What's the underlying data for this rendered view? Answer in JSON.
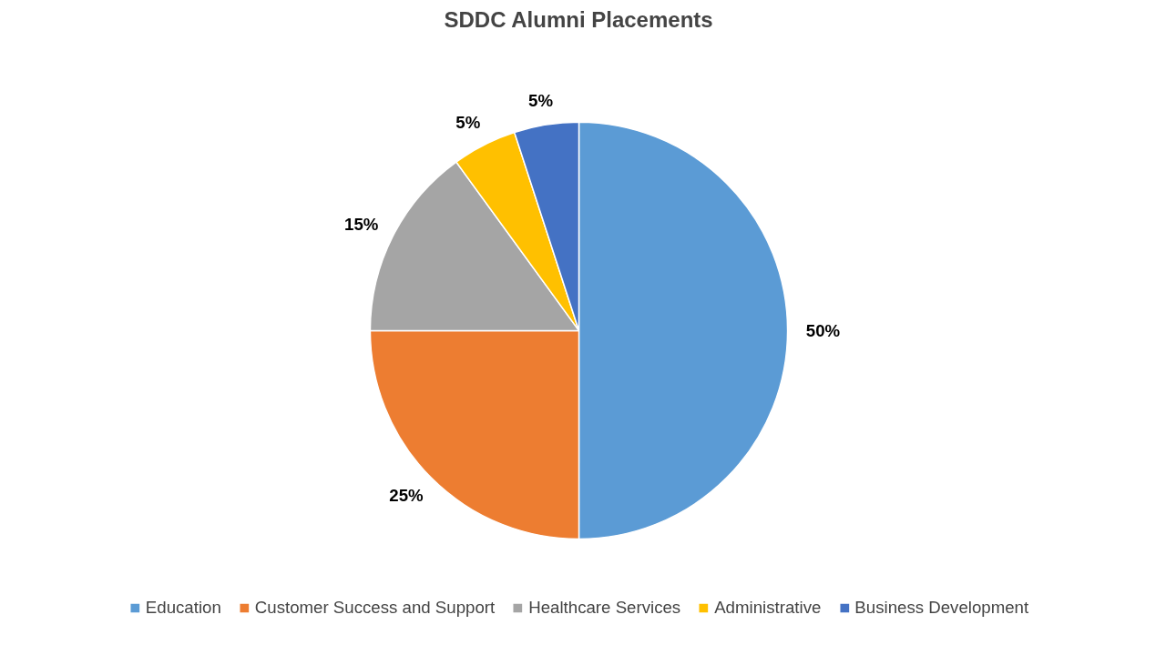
{
  "chart_data": {
    "type": "pie",
    "title": "SDDC Alumni Placements",
    "categories": [
      "Education",
      "Customer Success and Support",
      "Healthcare Services",
      "Administrative",
      "Business Development"
    ],
    "values": [
      50,
      25,
      15,
      5,
      5
    ],
    "colors": [
      "#5b9bd5",
      "#ed7d31",
      "#a5a5a5",
      "#ffc000",
      "#4472c4"
    ],
    "value_labels": [
      "50%",
      "25%",
      "15%",
      "5%",
      "5%"
    ],
    "legend": "bottom"
  }
}
